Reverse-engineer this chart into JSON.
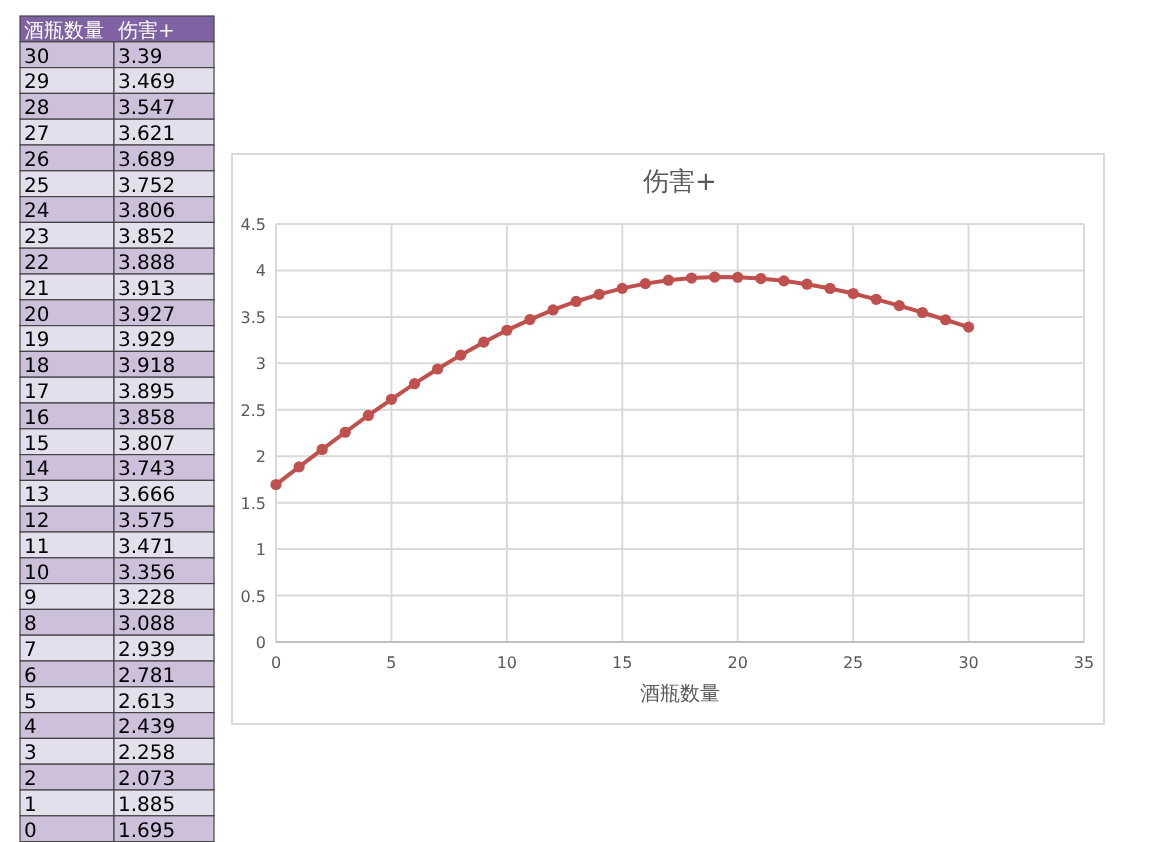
{
  "chart_data": [
    {
      "type": "heatmap",
      "ylabel": "酒瓶数量",
      "categories": [
        "伤害+"
      ],
      "y_categories": [
        "30",
        "29",
        "28",
        "27",
        "26",
        "25",
        "24",
        "23",
        "22",
        "21",
        "20",
        "19",
        "18",
        "17",
        "16",
        "15",
        "14",
        "13",
        "12",
        "11",
        "10",
        "9",
        "8",
        "7",
        "6",
        "5",
        "4",
        "3",
        "2",
        "1",
        "0"
      ],
      "cells": [
        [
          3.39
        ],
        [
          3.469
        ],
        [
          3.547
        ],
        [
          3.621
        ],
        [
          3.689
        ],
        [
          3.752
        ],
        [
          3.806
        ],
        [
          3.852
        ],
        [
          3.888
        ],
        [
          3.913
        ],
        [
          3.927
        ],
        [
          3.929
        ],
        [
          3.918
        ],
        [
          3.895
        ],
        [
          3.858
        ],
        [
          3.807
        ],
        [
          3.743
        ],
        [
          3.666
        ],
        [
          3.575
        ],
        [
          3.471
        ],
        [
          3.356
        ],
        [
          3.228
        ],
        [
          3.088
        ],
        [
          2.939
        ],
        [
          2.781
        ],
        [
          2.613
        ],
        [
          2.439
        ],
        [
          2.258
        ],
        [
          2.073
        ],
        [
          1.885
        ],
        [
          1.695
        ]
      ],
      "data_labels": true
    },
    {
      "type": "line",
      "title": "伤害+",
      "xlabel": "酒瓶数量",
      "x": [
        0,
        1,
        2,
        3,
        4,
        5,
        6,
        7,
        8,
        9,
        10,
        11,
        12,
        13,
        14,
        15,
        16,
        17,
        18,
        19,
        20,
        21,
        22,
        23,
        24,
        25,
        26,
        27,
        28,
        29,
        30
      ],
      "values": [
        1.695,
        1.885,
        2.073,
        2.258,
        2.439,
        2.613,
        2.781,
        2.939,
        3.088,
        3.228,
        3.356,
        3.471,
        3.575,
        3.666,
        3.743,
        3.807,
        3.858,
        3.895,
        3.918,
        3.929,
        3.927,
        3.913,
        3.888,
        3.852,
        3.806,
        3.752,
        3.689,
        3.621,
        3.547,
        3.469,
        3.39
      ],
      "color": "#c0504d",
      "xlim": [
        0,
        35
      ],
      "xticks": [
        0,
        5,
        10,
        15,
        20,
        25,
        30,
        35
      ],
      "ylim": [
        0,
        4.5
      ],
      "yticks": [
        0,
        0.5,
        1,
        1.5,
        2,
        2.5,
        3,
        3.5,
        4,
        4.5
      ],
      "grid": true,
      "marker": "circle",
      "line_style": "solid"
    }
  ]
}
